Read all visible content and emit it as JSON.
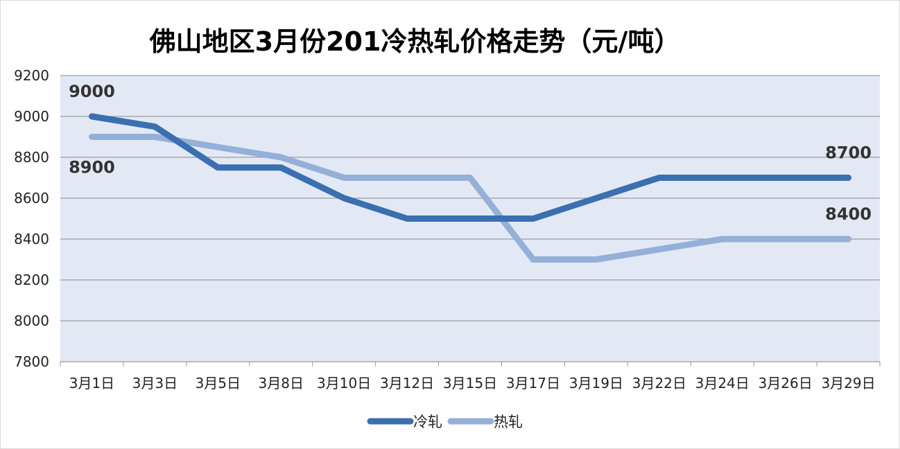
{
  "chart_data": {
    "type": "line",
    "title": "佛山地区3月份201冷热轧价格走势（元/吨）",
    "xlabel": "",
    "ylabel": "",
    "categories": [
      "3月1日",
      "3月3日",
      "3月5日",
      "3月8日",
      "3月10日",
      "3月12日",
      "3月15日",
      "3月17日",
      "3月19日",
      "3月22日",
      "3月24日",
      "3月26日",
      "3月29日"
    ],
    "ylim": [
      7800,
      9200
    ],
    "yticks": [
      7800,
      8000,
      8200,
      8400,
      8600,
      8800,
      9000,
      9200
    ],
    "grid": true,
    "legend_position": "bottom",
    "series": [
      {
        "name": "冷轧",
        "color": "#3a6fb0",
        "values": [
          9000,
          8950,
          8750,
          8750,
          8600,
          8500,
          8500,
          8500,
          8600,
          8700,
          8700,
          8700,
          8700
        ]
      },
      {
        "name": "热轧",
        "color": "#94afd8",
        "values": [
          8900,
          8900,
          8850,
          8800,
          8700,
          8700,
          8700,
          8300,
          8300,
          8350,
          8400,
          8400,
          8400
        ]
      }
    ],
    "annotations": [
      {
        "series": 0,
        "index": 0,
        "text": "9000",
        "placement": "above"
      },
      {
        "series": 1,
        "index": 0,
        "text": "8900",
        "placement": "below"
      },
      {
        "series": 0,
        "index": 12,
        "text": "8700",
        "placement": "above"
      },
      {
        "series": 1,
        "index": 12,
        "text": "8400",
        "placement": "above"
      }
    ],
    "plot_background": "#e2e9f4",
    "grid_color": "#9a9a9a"
  }
}
